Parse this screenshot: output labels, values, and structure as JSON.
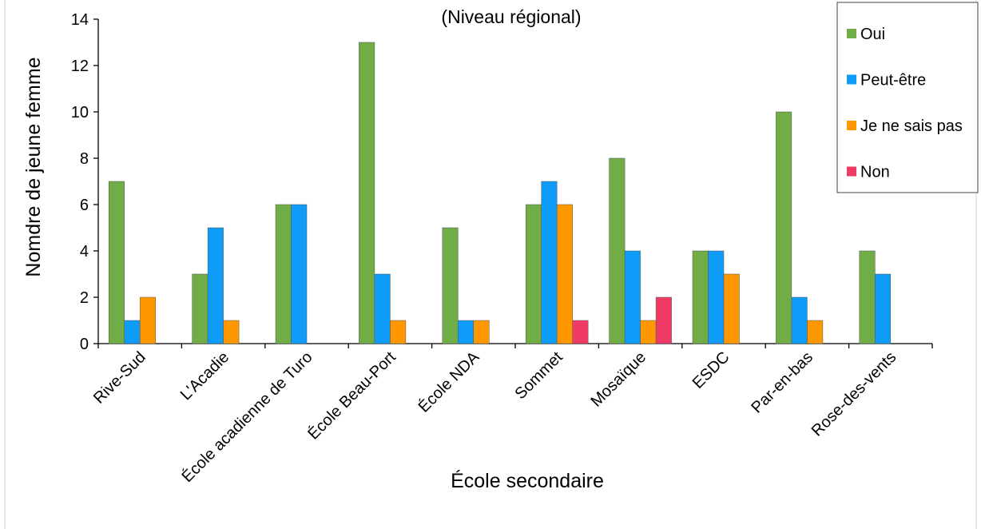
{
  "chart_data": {
    "type": "bar",
    "title": "(Niveau régional)",
    "xlabel": "École secondaire",
    "ylabel": "Nomdre de jeune femme",
    "ylim": [
      0,
      14
    ],
    "yticks": [
      0,
      2,
      4,
      6,
      8,
      10,
      12,
      14
    ],
    "grid": false,
    "legend_position": "top-right",
    "categories": [
      "Rive-Sud",
      "L'Acadie",
      "École acadienne de Turo",
      "École Beau-Port",
      "École NDA",
      "Sommet",
      "Mosaïque",
      "ESDC",
      "Par-en-bas",
      "Rose-des-vents"
    ],
    "series": [
      {
        "name": "Oui",
        "color": "#70ad47",
        "values": [
          7,
          3,
          6,
          13,
          5,
          6,
          8,
          4,
          10,
          4
        ]
      },
      {
        "name": "Peut-être",
        "color": "#0f9bf8",
        "values": [
          1,
          5,
          6,
          3,
          1,
          7,
          4,
          4,
          2,
          3
        ]
      },
      {
        "name": "Je ne sais pas",
        "color": "#ff9800",
        "values": [
          2,
          1,
          0,
          1,
          1,
          6,
          1,
          3,
          1,
          0
        ]
      },
      {
        "name": "Non",
        "color": "#ee3a64",
        "values": [
          0,
          0,
          0,
          0,
          0,
          1,
          2,
          0,
          0,
          0
        ]
      }
    ]
  }
}
